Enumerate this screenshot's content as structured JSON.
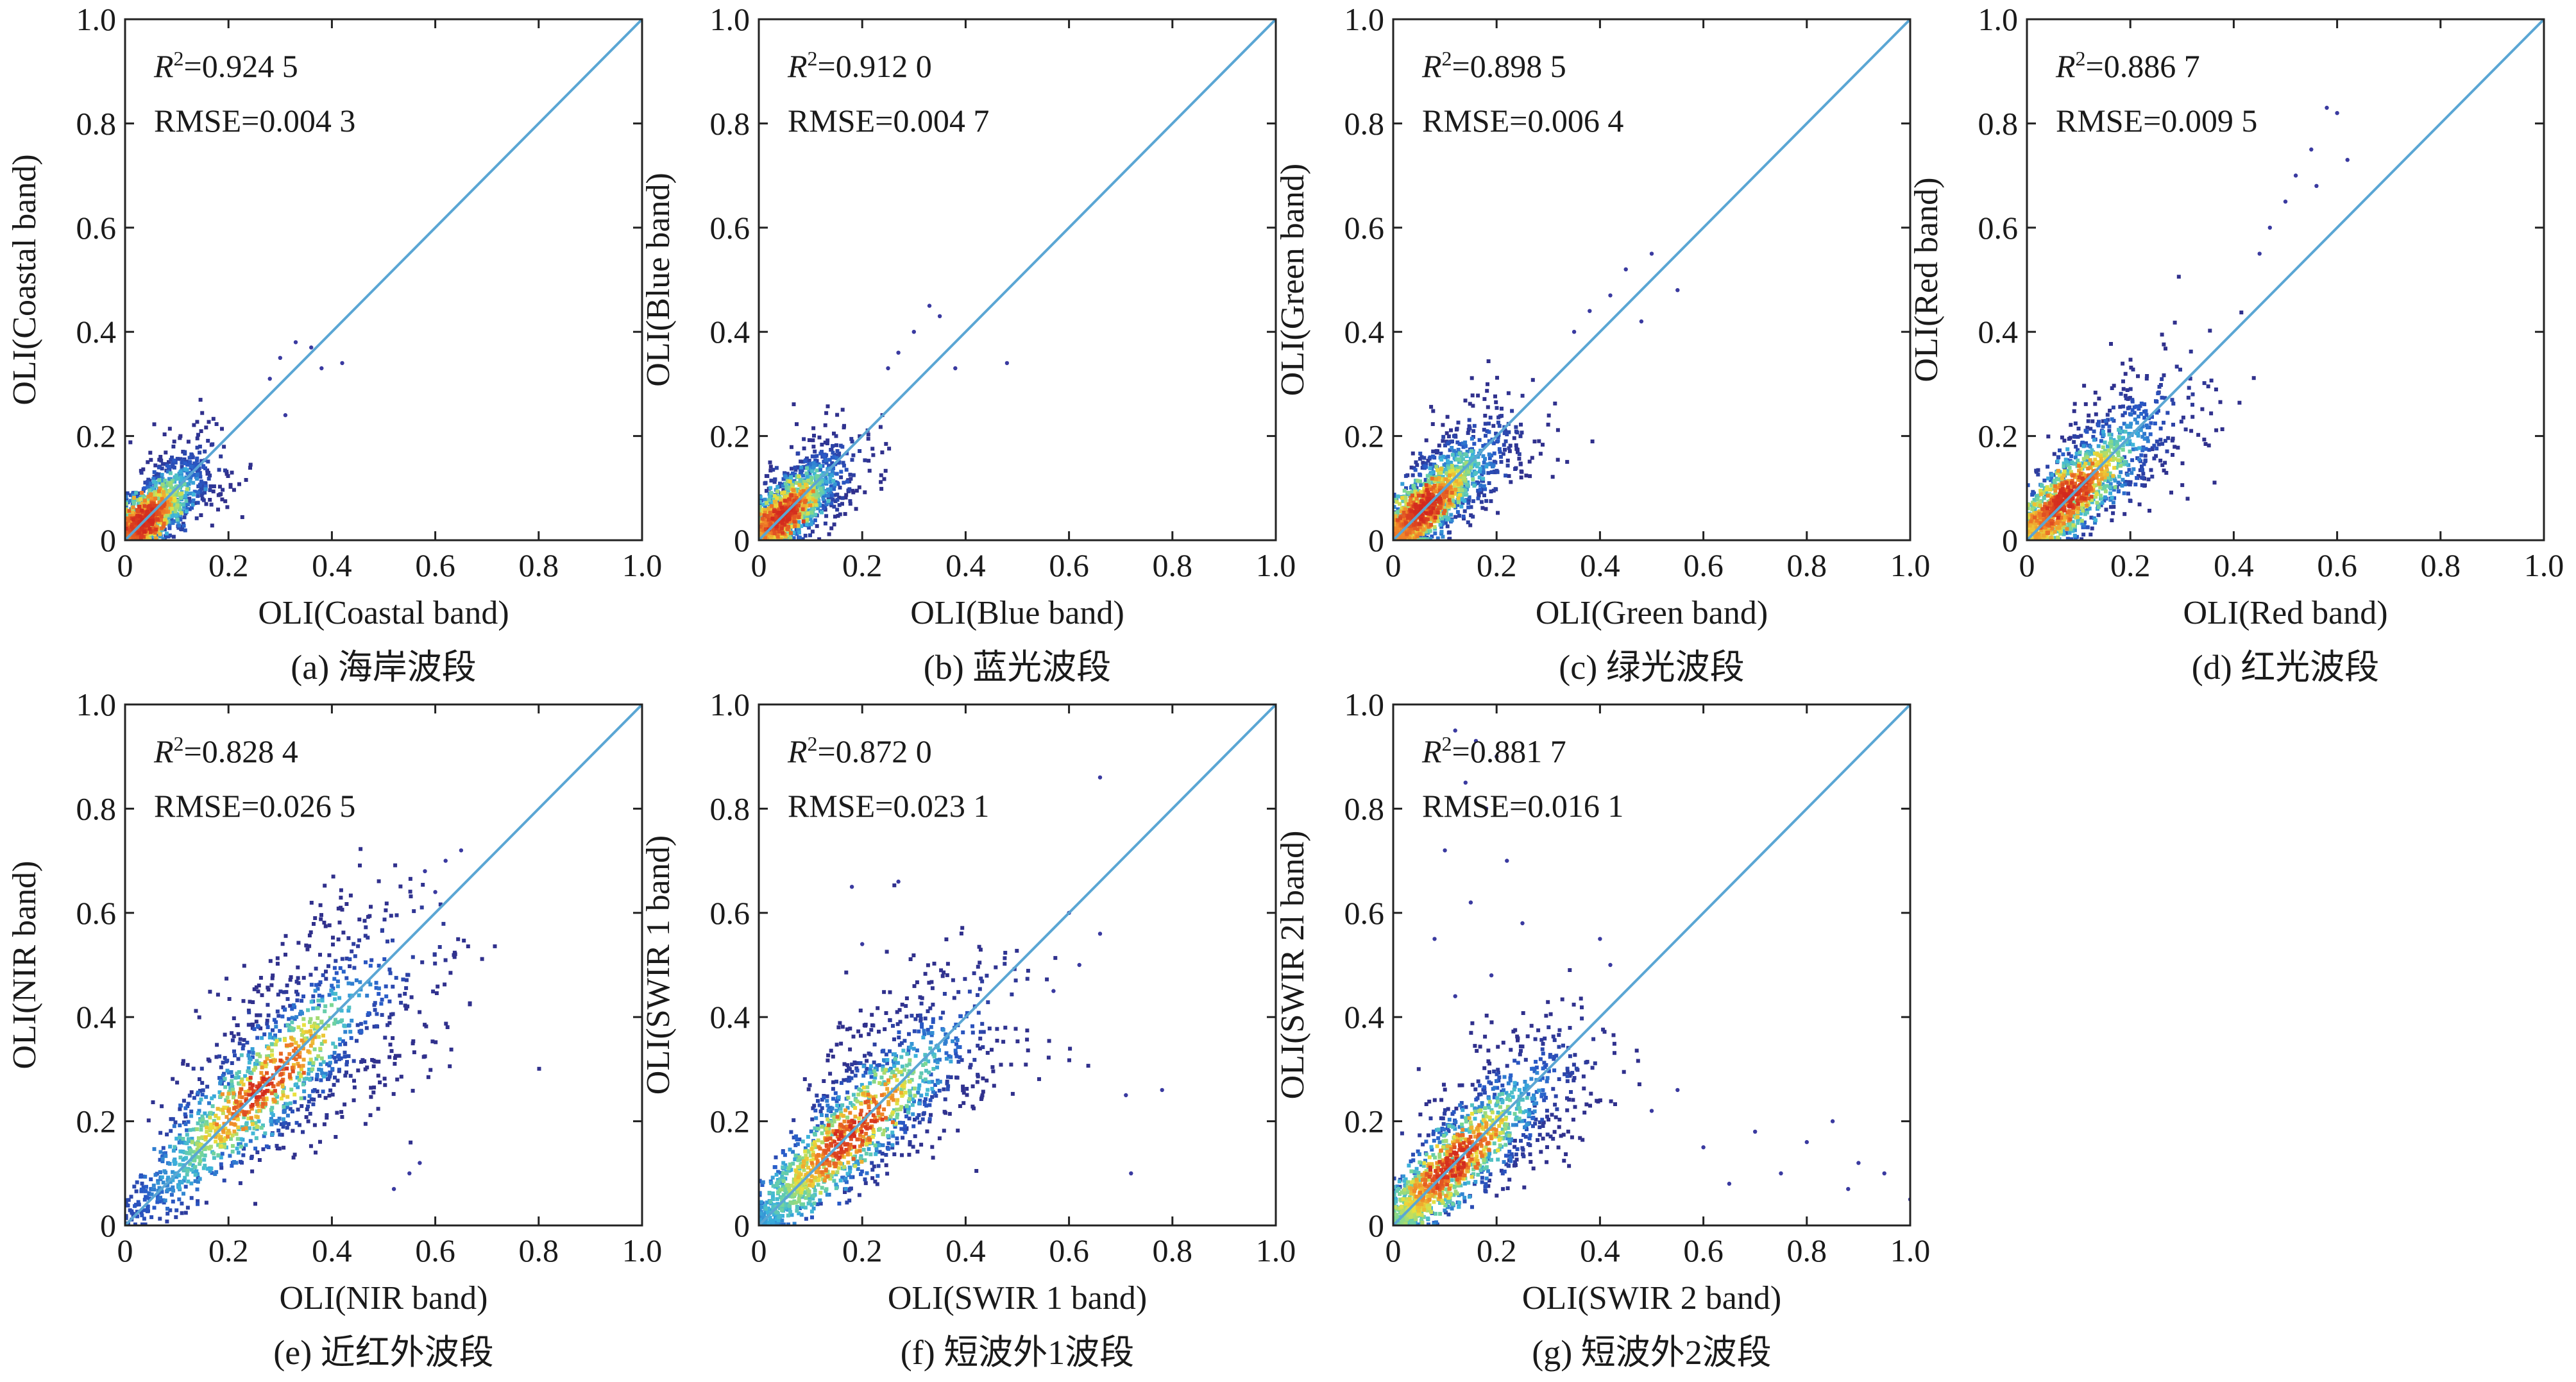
{
  "figure": {
    "background": "#ffffff",
    "line_color": "#5aa6d4",
    "point_color": "#3a3aa0"
  },
  "chart_data": [
    {
      "type": "scatter",
      "caption": "(a) 海岸波段",
      "xlabel": "OLI(Coastal band)",
      "ylabel": "OLI(Coastal band)",
      "xlim": [
        0,
        1.0
      ],
      "ylim": [
        0,
        1.0
      ],
      "x_ticks": [
        "0",
        "0.2",
        "0.4",
        "0.6",
        "0.8",
        "1.0"
      ],
      "y_ticks": [
        "0",
        "0.2",
        "0.4",
        "0.6",
        "0.8",
        "1.0"
      ],
      "r2_label": "R",
      "r2_value": "=0.924 5",
      "r2": 0.9245,
      "rmse_text": "RMSE=0.004 3",
      "rmse": 0.0043,
      "fit_line": [
        [
          0,
          0
        ],
        [
          1,
          1
        ]
      ],
      "density_core": {
        "center": 0.04,
        "spread": 0.06,
        "extent": 0.22
      },
      "sparse_points": [
        [
          0.3,
          0.35
        ],
        [
          0.33,
          0.38
        ],
        [
          0.36,
          0.37
        ],
        [
          0.38,
          0.33
        ],
        [
          0.28,
          0.31
        ],
        [
          0.42,
          0.34
        ],
        [
          0.31,
          0.24
        ]
      ]
    },
    {
      "type": "scatter",
      "caption": "(b) 蓝光波段",
      "xlabel": "OLI(Blue band)",
      "ylabel": "OLI(Blue band)",
      "xlim": [
        0,
        1.0
      ],
      "ylim": [
        0,
        1.0
      ],
      "x_ticks": [
        "0",
        "0.2",
        "0.4",
        "0.6",
        "0.8",
        "1.0"
      ],
      "y_ticks": [
        "0",
        "0.2",
        "0.4",
        "0.6",
        "0.8",
        "1.0"
      ],
      "r2_label": "R",
      "r2_value": "=0.912 0",
      "r2": 0.912,
      "rmse_text": "RMSE=0.004 7",
      "rmse": 0.0047,
      "fit_line": [
        [
          0,
          0
        ],
        [
          1,
          1
        ]
      ],
      "density_core": {
        "center": 0.05,
        "spread": 0.06,
        "extent": 0.24
      },
      "sparse_points": [
        [
          0.33,
          0.45
        ],
        [
          0.35,
          0.43
        ],
        [
          0.3,
          0.4
        ],
        [
          0.27,
          0.36
        ],
        [
          0.38,
          0.33
        ],
        [
          0.48,
          0.34
        ],
        [
          0.25,
          0.33
        ]
      ]
    },
    {
      "type": "scatter",
      "caption": "(c) 绿光波段",
      "xlabel": "OLI(Green band)",
      "ylabel": "OLI(Green band)",
      "xlim": [
        0,
        1.0
      ],
      "ylim": [
        0,
        1.0
      ],
      "x_ticks": [
        "0",
        "0.2",
        "0.4",
        "0.6",
        "0.8",
        "1.0"
      ],
      "y_ticks": [
        "0",
        "0.2",
        "0.4",
        "0.6",
        "0.8",
        "1.0"
      ],
      "r2_label": "R",
      "r2_value": "=0.898 5",
      "r2": 0.8985,
      "rmse_text": "RMSE=0.006 4",
      "rmse": 0.0064,
      "fit_line": [
        [
          0,
          0
        ],
        [
          1,
          1
        ]
      ],
      "density_core": {
        "center": 0.06,
        "spread": 0.08,
        "extent": 0.32
      },
      "sparse_points": [
        [
          0.45,
          0.52
        ],
        [
          0.5,
          0.55
        ],
        [
          0.42,
          0.47
        ],
        [
          0.38,
          0.44
        ],
        [
          0.55,
          0.48
        ],
        [
          0.48,
          0.42
        ],
        [
          0.35,
          0.4
        ]
      ]
    },
    {
      "type": "scatter",
      "caption": "(d) 红光波段",
      "xlabel": "OLI(Red band)",
      "ylabel": "OLI(Red band)",
      "xlim": [
        0,
        1.0
      ],
      "ylim": [
        0,
        1.0
      ],
      "x_ticks": [
        "0",
        "0.2",
        "0.4",
        "0.6",
        "0.8",
        "1.0"
      ],
      "y_ticks": [
        "0",
        "0.2",
        "0.4",
        "0.6",
        "0.8",
        "1.0"
      ],
      "r2_label": "R",
      "r2_value": "=0.886 7",
      "r2": 0.8867,
      "rmse_text": "RMSE=0.009 5",
      "rmse": 0.0095,
      "fit_line": [
        [
          0,
          0
        ],
        [
          1,
          1
        ]
      ],
      "density_core": {
        "center": 0.08,
        "spread": 0.1,
        "extent": 0.42
      },
      "sparse_points": [
        [
          0.55,
          0.75
        ],
        [
          0.58,
          0.83
        ],
        [
          0.6,
          0.82
        ],
        [
          0.52,
          0.7
        ],
        [
          0.5,
          0.65
        ],
        [
          0.47,
          0.6
        ],
        [
          0.62,
          0.73
        ],
        [
          0.56,
          0.68
        ],
        [
          0.45,
          0.55
        ]
      ]
    },
    {
      "type": "scatter",
      "caption": "(e) 近红外波段",
      "xlabel": "OLI(NIR band)",
      "ylabel": "OLI(NIR band)",
      "xlim": [
        0,
        1.0
      ],
      "ylim": [
        0,
        1.0
      ],
      "x_ticks": [
        "0",
        "0.2",
        "0.4",
        "0.6",
        "0.8",
        "1.0"
      ],
      "y_ticks": [
        "0",
        "0.2",
        "0.4",
        "0.6",
        "0.8",
        "1.0"
      ],
      "r2_label": "R",
      "r2_value": "=0.828 4",
      "r2": 0.8284,
      "rmse_text": "RMSE=0.026 5",
      "rmse": 0.0265,
      "fit_line": [
        [
          0,
          0
        ],
        [
          1,
          1
        ]
      ],
      "density_core": {
        "center": 0.27,
        "spread": 0.14,
        "extent": 0.62
      },
      "sparse_points": [
        [
          0.62,
          0.7
        ],
        [
          0.65,
          0.72
        ],
        [
          0.58,
          0.68
        ],
        [
          0.6,
          0.64
        ],
        [
          0.55,
          0.1
        ],
        [
          0.57,
          0.12
        ],
        [
          0.52,
          0.07
        ]
      ]
    },
    {
      "type": "scatter",
      "caption": "(f) 短波外1波段",
      "xlabel": "OLI(SWIR 1 band)",
      "ylabel": "OLI(SWIR 1 band)",
      "xlim": [
        0,
        1.0
      ],
      "ylim": [
        0,
        1.0
      ],
      "x_ticks": [
        "0",
        "0.2",
        "0.4",
        "0.6",
        "0.8",
        "1.0"
      ],
      "y_ticks": [
        "0",
        "0.2",
        "0.4",
        "0.6",
        "0.8",
        "1.0"
      ],
      "r2_label": "R",
      "r2_value": "=0.872 0",
      "r2": 0.872,
      "rmse_text": "RMSE=0.023 1",
      "rmse": 0.0231,
      "fit_line": [
        [
          0,
          0
        ],
        [
          1,
          1
        ]
      ],
      "density_core": {
        "center": 0.18,
        "spread": 0.13,
        "extent": 0.55
      },
      "sparse_points": [
        [
          0.18,
          0.65
        ],
        [
          0.27,
          0.66
        ],
        [
          0.2,
          0.54
        ],
        [
          0.66,
          0.86
        ],
        [
          0.6,
          0.6
        ],
        [
          0.66,
          0.56
        ],
        [
          0.71,
          0.25
        ],
        [
          0.78,
          0.26
        ],
        [
          0.72,
          0.1
        ],
        [
          0.57,
          0.45
        ],
        [
          0.62,
          0.5
        ]
      ]
    },
    {
      "type": "scatter",
      "caption": "(g) 短波外2波段",
      "xlabel": "OLI(SWIR 2 band)",
      "ylabel": "OLI(SWIR 2l band)",
      "xlim": [
        0,
        1.0
      ],
      "ylim": [
        0,
        1.0
      ],
      "x_ticks": [
        "0",
        "0.2",
        "0.4",
        "0.6",
        "0.8",
        "1.0"
      ],
      "y_ticks": [
        "0",
        "0.2",
        "0.4",
        "0.6",
        "0.8",
        "1.0"
      ],
      "r2_label": "R",
      "r2_value": "=0.881 7",
      "r2": 0.8817,
      "rmse_text": "RMSE=0.016 1",
      "rmse": 0.0161,
      "fit_line": [
        [
          0,
          0
        ],
        [
          1,
          1
        ]
      ],
      "density_core": {
        "center": 0.12,
        "spread": 0.11,
        "extent": 0.4
      },
      "sparse_points": [
        [
          0.12,
          0.95
        ],
        [
          0.16,
          0.93
        ],
        [
          0.2,
          0.9
        ],
        [
          0.14,
          0.85
        ],
        [
          0.18,
          0.8
        ],
        [
          0.1,
          0.72
        ],
        [
          0.22,
          0.7
        ],
        [
          0.15,
          0.62
        ],
        [
          0.08,
          0.55
        ],
        [
          0.25,
          0.58
        ],
        [
          0.19,
          0.48
        ],
        [
          0.12,
          0.44
        ],
        [
          0.6,
          0.15
        ],
        [
          0.7,
          0.18
        ],
        [
          0.8,
          0.16
        ],
        [
          0.9,
          0.12
        ],
        [
          0.95,
          0.1
        ],
        [
          0.75,
          0.1
        ],
        [
          0.85,
          0.2
        ],
        [
          0.55,
          0.26
        ],
        [
          0.65,
          0.08
        ],
        [
          1.0,
          0.05
        ],
        [
          0.5,
          0.22
        ],
        [
          0.88,
          0.07
        ],
        [
          0.4,
          0.55
        ],
        [
          0.42,
          0.5
        ]
      ]
    }
  ]
}
